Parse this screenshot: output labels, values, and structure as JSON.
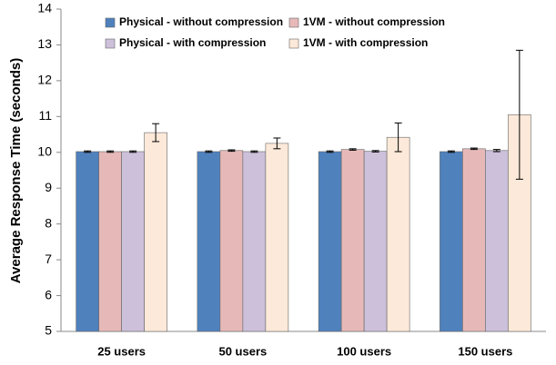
{
  "chart_data": {
    "type": "bar",
    "y_label": "Average Response Time (seconds)",
    "categories": [
      "25 users",
      "50 users",
      "100 users",
      "150 users"
    ],
    "series": [
      {
        "name": "Physical - without compression",
        "color": "#4f81bd",
        "values": [
          10.02,
          10.02,
          10.02,
          10.02
        ],
        "errors": [
          0.02,
          0.02,
          0.02,
          0.02
        ]
      },
      {
        "name": "1VM - without compression",
        "color": "#e6b9b8",
        "values": [
          10.02,
          10.05,
          10.08,
          10.1
        ],
        "errors": [
          0.02,
          0.02,
          0.02,
          0.02
        ]
      },
      {
        "name": "Physical - with compression",
        "color": "#ccc0da",
        "values": [
          10.02,
          10.02,
          10.03,
          10.05
        ],
        "errors": [
          0.02,
          0.02,
          0.02,
          0.03
        ]
      },
      {
        "name": "1VM - with compression",
        "color": "#fde9d9",
        "values": [
          10.55,
          10.25,
          10.42,
          11.05
        ],
        "errors": [
          0.25,
          0.15,
          0.4,
          1.8
        ]
      }
    ],
    "ylim": [
      5,
      14
    ],
    "yticks": [
      5,
      6,
      7,
      8,
      9,
      10,
      11,
      12,
      13,
      14
    ]
  }
}
